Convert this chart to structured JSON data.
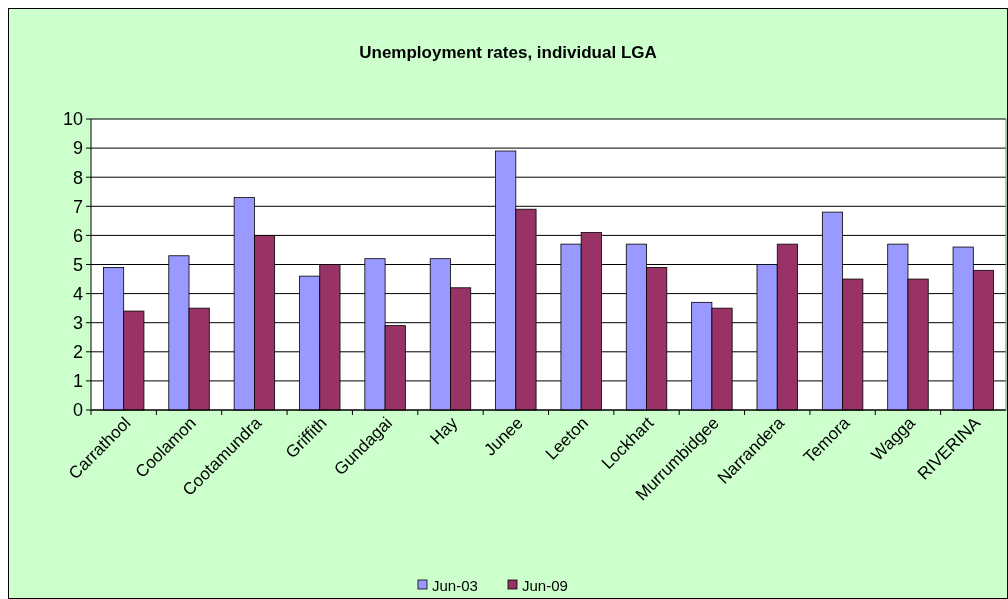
{
  "chart_data": {
    "type": "bar",
    "title": "Unemployment rates, individual LGA",
    "categories": [
      "Carrathool",
      "Coolamon",
      "Cootamundra",
      "Griffith",
      "Gundagai",
      "Hay",
      "Junee",
      "Leeton",
      "Lockhart",
      "Murrumbidgee",
      "Narrandera",
      "Temora",
      "Wagga",
      "RIVERINA"
    ],
    "series": [
      {
        "name": "Jun-03",
        "color": "#9999ff",
        "values": [
          4.9,
          5.3,
          7.3,
          4.6,
          5.2,
          5.2,
          8.9,
          5.7,
          5.7,
          3.7,
          5.0,
          6.8,
          5.7,
          5.6
        ]
      },
      {
        "name": "Jun-09",
        "color": "#993366",
        "values": [
          3.4,
          3.5,
          6.0,
          5.0,
          2.9,
          4.2,
          6.9,
          6.1,
          4.9,
          3.5,
          5.7,
          4.5,
          4.5,
          4.8
        ]
      }
    ],
    "ylim": [
      0,
      10
    ],
    "yticks": [
      0,
      1,
      2,
      3,
      4,
      5,
      6,
      7,
      8,
      9,
      10
    ],
    "grid": "y",
    "legend": "bottom"
  }
}
